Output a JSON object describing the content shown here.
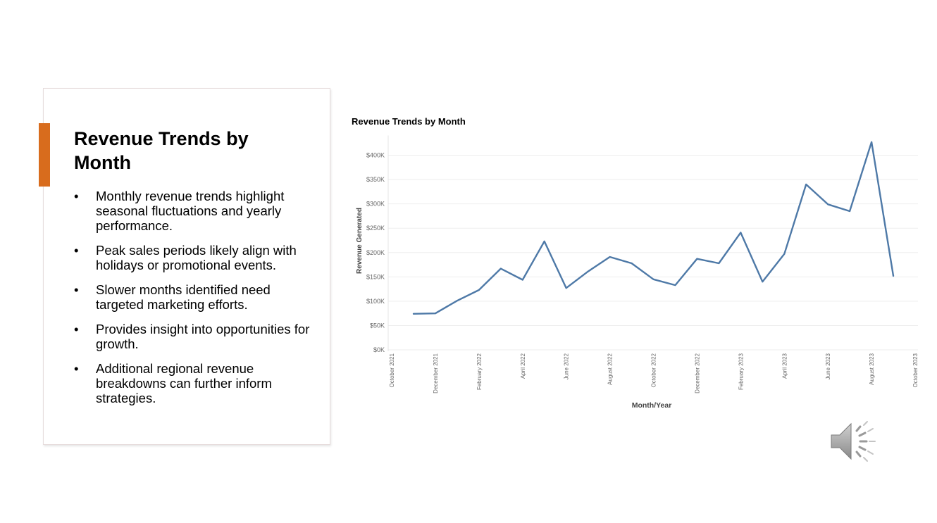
{
  "slide": {
    "title": "Revenue Trends by Month",
    "bullets": [
      "Monthly revenue trends highlight seasonal fluctuations and yearly performance.",
      "Peak sales periods likely align with holidays or promotional events.",
      "Slower months identified need targeted marketing efforts.",
      "Provides insight into opportunities for growth.",
      "Additional regional revenue breakdowns can further inform strategies."
    ],
    "bullet_symbol": "•",
    "accent_color": "#d86c1d",
    "audio_icon": "speaker-icon"
  },
  "chart_data": {
    "type": "line",
    "title": "Revenue Trends by Month",
    "xlabel": "Month/Year",
    "ylabel": "Revenue Generated",
    "x_tick_labels": [
      "October 2021",
      "December 2021",
      "February 2022",
      "April 2022",
      "June 2022",
      "August 2022",
      "October 2022",
      "December 2022",
      "February 2023",
      "April 2023",
      "June 2023",
      "August 2023",
      "October 2023"
    ],
    "y_tick_labels": [
      "$0K",
      "$50K",
      "$100K",
      "$150K",
      "$200K",
      "$250K",
      "$300K",
      "$350K",
      "$400K"
    ],
    "ylim": [
      0,
      440000
    ],
    "grid": true,
    "line_color": "#4e79a7",
    "series": [
      {
        "x": [
          "November 2021",
          "December 2021",
          "January 2022",
          "February 2022",
          "March 2022",
          "April 2022",
          "May 2022",
          "June 2022",
          "July 2022",
          "August 2022",
          "September 2022",
          "October 2022",
          "November 2022",
          "December 2022",
          "January 2023",
          "February 2023",
          "March 2023",
          "April 2023",
          "May 2023",
          "June 2023",
          "July 2023",
          "August 2023",
          "September 2023"
        ],
        "values": [
          74000,
          75000,
          101000,
          123000,
          167000,
          144000,
          223000,
          127000,
          161000,
          191000,
          178000,
          145000,
          133000,
          187000,
          178000,
          241000,
          140000,
          197000,
          340000,
          299000,
          285000,
          427000,
          152000
        ]
      }
    ]
  }
}
